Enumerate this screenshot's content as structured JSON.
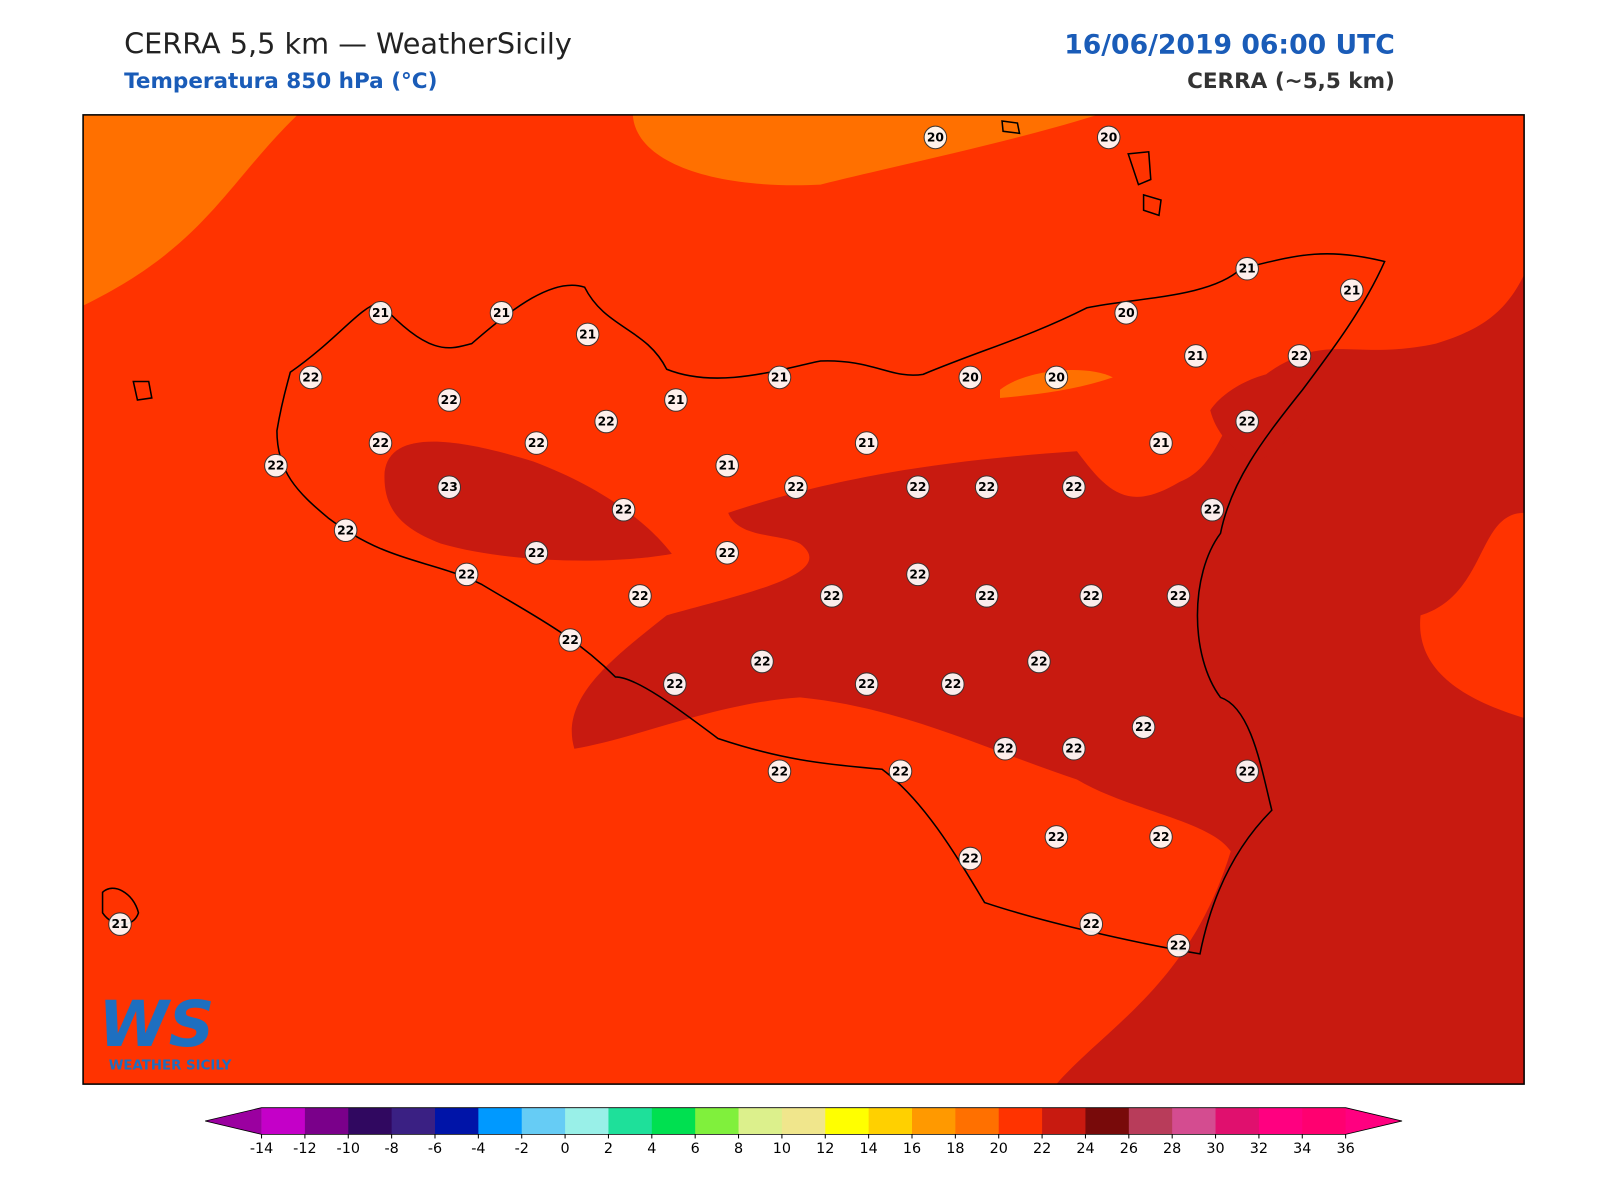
{
  "header": {
    "title": "CERRA 5,5 km — WeatherSicily",
    "subtitle": "Temperatura 850 hPa (°C)",
    "date": "16/06/2019 06:00 UTC",
    "source": "CERRA (~5,5 km)"
  },
  "stations": {
    "values": [
      20,
      20,
      21,
      21,
      21,
      21,
      21,
      20,
      21,
      22,
      22,
      22,
      21,
      21,
      20,
      20,
      22,
      22,
      22,
      21,
      21,
      22,
      22,
      21,
      23,
      22,
      22,
      22,
      22,
      22,
      22,
      22,
      22,
      22,
      22,
      22,
      22,
      22,
      22,
      22,
      22,
      22,
      22,
      22,
      22,
      22,
      22,
      22,
      22,
      22,
      22,
      22,
      22,
      22,
      22,
      22,
      22,
      22,
      21
    ]
  },
  "colorbar": {
    "ticks": [
      -14,
      -12,
      -10,
      -8,
      -6,
      -4,
      -2,
      0,
      2,
      4,
      6,
      8,
      10,
      12,
      14,
      16,
      18,
      20,
      22,
      24,
      26,
      28,
      30,
      32,
      34,
      36
    ],
    "colors": [
      "#c400c8",
      "#7a008a",
      "#300860",
      "#3a2083",
      "#0014a8",
      "#0099ff",
      "#66ccf5",
      "#99f0e8",
      "#1ee09a",
      "#00e050",
      "#80f03c",
      "#dcf08c",
      "#f0e68c",
      "#ffff00",
      "#ffd000",
      "#ff9900",
      "#ff7000",
      "#ff3300",
      "#c81a10",
      "#780a0a",
      "#b83c5a",
      "#d44c90",
      "#e0106e",
      "#ff0080",
      "#ff0070"
    ],
    "extend_colors": [
      "#9b00a0",
      "#ff0080"
    ]
  },
  "logo": {
    "mark": "WS",
    "text": "WEATHER SICILY"
  }
}
